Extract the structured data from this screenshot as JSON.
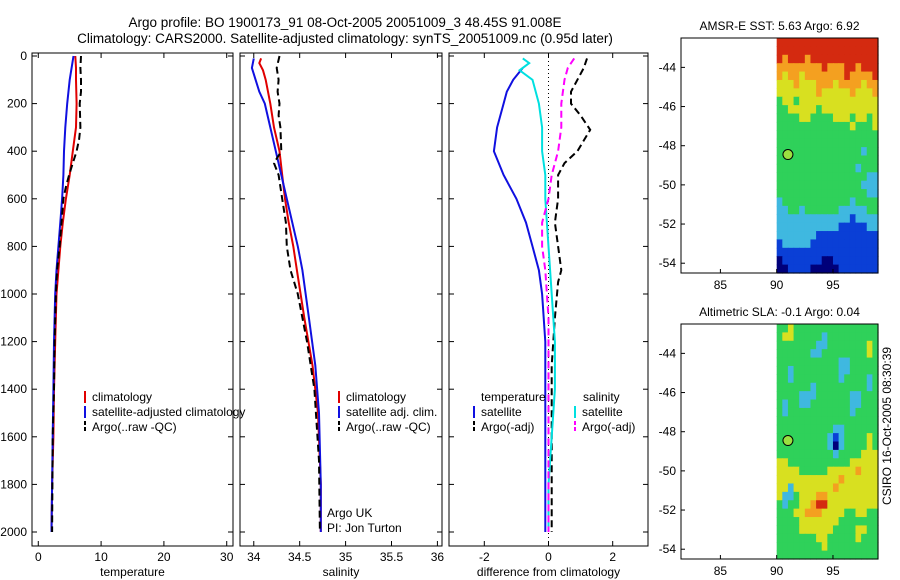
{
  "figure": {
    "title_line1": "Argo profile: BO 1900173_91 08-Oct-2005 20051009_3 48.45S 91.008E",
    "title_line2": "Climatology: CARS2000. Satellite-adjusted climatology: synTS_20051009.nc (0.95d later)",
    "side_label": "CSIRO 16-Oct-2005 08:30:39",
    "argo_credit_1": "Argo UK",
    "argo_credit_2": "PI: Jon Turton"
  },
  "colors": {
    "climatology": "#e00000",
    "satellite": "#1010e0",
    "argo": "#000000",
    "salinity_satellite": "#00e0e0",
    "salinity_argo": "#ff00ff"
  },
  "chart_data": [
    {
      "type": "line",
      "id": "temperature",
      "xlabel": "temperature",
      "ylabel": "",
      "xlim": [
        -1,
        31
      ],
      "ylim": [
        2050,
        0
      ],
      "xticks": [
        0,
        10,
        20,
        30
      ],
      "yticks": [
        0,
        200,
        400,
        600,
        800,
        1000,
        1200,
        1400,
        1600,
        1800,
        2000
      ],
      "legend": [
        "climatology",
        "satellite-adjusted climatology",
        "Argo(..raw -QC)"
      ],
      "series": [
        {
          "name": "climatology",
          "style": "solid",
          "color": "#e00000",
          "x": [
            5.9,
            6.0,
            6.0,
            6.1,
            6.0,
            5.5,
            5.0,
            4.4,
            3.9,
            3.5,
            3.2,
            2.9,
            2.7,
            2.5,
            2.4,
            2.2,
            2.1
          ],
          "y": [
            0,
            50,
            100,
            200,
            300,
            400,
            500,
            600,
            700,
            800,
            900,
            1000,
            1200,
            1400,
            1600,
            1800,
            2000
          ]
        },
        {
          "name": "satellite-adjusted climatology",
          "style": "solid",
          "color": "#1010e0",
          "x": [
            5.6,
            5.0,
            4.6,
            4.3,
            4.1,
            4.0,
            3.8,
            3.5,
            3.2,
            2.9,
            2.7,
            2.5,
            2.4,
            2.3,
            2.1
          ],
          "y": [
            0,
            100,
            200,
            300,
            400,
            500,
            600,
            700,
            800,
            900,
            1000,
            1200,
            1400,
            1600,
            2000
          ]
        },
        {
          "name": "Argo(..raw -QC)",
          "style": "dashed",
          "color": "#000000",
          "x": [
            6.8,
            6.7,
            6.8,
            6.8,
            6.6,
            6.7,
            6.5,
            6.1,
            5.5,
            4.9,
            4.4,
            4.0,
            3.7,
            3.4,
            3.0,
            2.8,
            2.6,
            2.5,
            2.3,
            2.2
          ],
          "y": [
            0,
            50,
            100,
            150,
            200,
            300,
            350,
            400,
            450,
            500,
            550,
            600,
            700,
            800,
            900,
            1000,
            1200,
            1400,
            1600,
            2000
          ]
        }
      ]
    },
    {
      "type": "line",
      "id": "salinity",
      "xlabel": "salinity",
      "ylabel": "",
      "xlim": [
        33.85,
        36.05
      ],
      "ylim": [
        2050,
        0
      ],
      "xticks": [
        34,
        34.5,
        35,
        35.5,
        36
      ],
      "legend": [
        "climatology",
        "satellite adj. clim.",
        "Argo(..raw -QC)"
      ],
      "series": [
        {
          "name": "climatology",
          "style": "solid",
          "color": "#e00000",
          "x": [
            34.08,
            34.06,
            34.1,
            34.13,
            34.18,
            34.22,
            34.28,
            34.31,
            34.34,
            34.38,
            34.43,
            34.47,
            34.55,
            34.64,
            34.7,
            34.73,
            34.73
          ],
          "y": [
            10,
            30,
            60,
            100,
            200,
            300,
            400,
            500,
            600,
            700,
            800,
            900,
            1100,
            1300,
            1500,
            1800,
            2000
          ]
        },
        {
          "name": "satellite adj. clim.",
          "style": "solid",
          "color": "#1010e0",
          "x": [
            34.0,
            33.98,
            34.02,
            34.06,
            34.12,
            34.18,
            34.24,
            34.3,
            34.36,
            34.42,
            34.48,
            34.53,
            34.6,
            34.67,
            34.71,
            34.73,
            34.73
          ],
          "y": [
            10,
            50,
            100,
            150,
            200,
            300,
            400,
            500,
            600,
            700,
            800,
            900,
            1100,
            1300,
            1500,
            1800,
            2000
          ]
        },
        {
          "name": "Argo(..raw -QC)",
          "style": "dashed",
          "color": "#000000",
          "x": [
            34.28,
            34.25,
            34.27,
            34.26,
            34.28,
            34.27,
            34.29,
            34.3,
            34.22,
            34.27,
            34.31,
            34.35,
            34.36,
            34.4,
            34.48,
            34.58,
            34.66,
            34.71,
            34.72
          ],
          "y": [
            0,
            50,
            100,
            150,
            200,
            250,
            300,
            400,
            450,
            500,
            600,
            700,
            800,
            900,
            1000,
            1200,
            1400,
            1700,
            2000
          ]
        }
      ]
    },
    {
      "type": "line",
      "id": "difference",
      "xlabel": "difference from climatology",
      "ylabel": "",
      "xlim": [
        -3.1,
        3.1
      ],
      "ylim": [
        2050,
        0
      ],
      "xticks": [
        -2,
        0,
        2
      ],
      "legend_left_heading": "temperature",
      "legend_right_heading": "salinity",
      "legend": [
        "satellite",
        "Argo(-adj)",
        "satellite",
        "Argo(-adj)"
      ],
      "series": [
        {
          "name": "temperature satellite",
          "style": "solid",
          "color": "#1010e0",
          "x": [
            -0.8,
            -1.1,
            -1.3,
            -1.4,
            -1.6,
            -1.7,
            -1.4,
            -1.0,
            -0.7,
            -0.5,
            -0.3,
            -0.2,
            -0.1,
            -0.1,
            -0.1,
            -0.1
          ],
          "y": [
            50,
            100,
            150,
            200,
            300,
            400,
            500,
            600,
            700,
            800,
            900,
            1000,
            1200,
            1500,
            1800,
            2000
          ]
        },
        {
          "name": "temperature Argo(-adj)",
          "style": "dashed",
          "color": "#000000",
          "x": [
            1.2,
            1.1,
            0.9,
            0.7,
            0.7,
            1.0,
            1.3,
            0.9,
            0.5,
            0.3,
            0.3,
            0.2,
            0.3,
            0.4,
            0.3,
            0.2,
            0.1,
            0.1,
            0.1
          ],
          "y": [
            10,
            50,
            100,
            150,
            200,
            250,
            310,
            400,
            450,
            500,
            600,
            700,
            800,
            900,
            950,
            1100,
            1300,
            1600,
            2000
          ]
        },
        {
          "name": "salinity satellite",
          "style": "solid",
          "color": "#00e0e0",
          "x": [
            -0.8,
            -0.6,
            -0.9,
            -0.5,
            -0.3,
            -0.2,
            -0.2,
            -0.1,
            -0.1,
            0.0,
            0.1,
            0.2,
            0.2,
            0.1,
            0.0,
            0.0
          ],
          "y": [
            10,
            30,
            60,
            100,
            200,
            300,
            400,
            500,
            600,
            800,
            1000,
            1200,
            1400,
            1600,
            1800,
            2000
          ]
        },
        {
          "name": "salinity Argo(-adj)",
          "style": "dashed",
          "color": "#ff00ff",
          "x": [
            0.8,
            0.6,
            0.5,
            0.4,
            0.4,
            0.3,
            0.1,
            0.0,
            -0.2,
            -0.2,
            -0.1,
            0.0,
            0.0,
            0.0,
            0.0
          ],
          "y": [
            10,
            50,
            100,
            200,
            300,
            400,
            500,
            600,
            700,
            800,
            900,
            1100,
            1300,
            1600,
            2000
          ]
        }
      ]
    },
    {
      "type": "heatmap",
      "id": "sst_map",
      "title": "AMSR-E SST: 5.63 Argo: 6.92",
      "xlim": [
        81.5,
        99
      ],
      "ylim": [
        -54.5,
        -42.5
      ],
      "xticks": [
        85,
        90,
        95
      ],
      "yticks": [
        -44,
        -46,
        -48,
        -50,
        -52,
        -54
      ],
      "data_xrange": [
        90,
        99
      ],
      "marker": {
        "lon": 91.0,
        "lat": -48.45
      },
      "rows_north_to_south": [
        "RRRRRRRRRRRRRRRRRR",
        "RRRRRRRRRRRRRRRRRR",
        "RORRRORRRRRRRRRRRR",
        "OOOOOOOOROOORRORRR",
        "OYOOYOOOOOOOROOOOR",
        "YYYOYYYOOOYOOOOYOO",
        "YYYYYYYOYYYYYOYYYO",
        "GYYGYYYYYYYYYYYYYY",
        "GGYYYYYGYYYYYYYYYY",
        "GGGGYYGGGGYYYGYYGY",
        "GGGGGGGGGGGGGYGGGY",
        "GGGGGGGGGGGGGGGGGG",
        "GGGGGGGGGGGGGGGGGG",
        "GGGGGGGGGGGGGGGCGG",
        "GGGGGGGGGGGGGGGGGG",
        "GGGGGGGGGGGGGGCGGG",
        "GGGGGGGGGGGGGGGGCC",
        "GGGGGGGGGGGGGGGCCC",
        "GGGGGGGGGGGGGGGGCC",
        "CGGGGGGGGGGGGCGGGG",
        "CCGGCGGGGGGCCCCCGG",
        "CCCCCCCCCCCCCBCCCC",
        "CCCCCCCCCCCBBBBBCC",
        "CCCCCCCBBBBBBBBBBB",
        "BCCCCCBBBBBBBBBBBB",
        "BBBBBBBBBBBBBBBBBB",
        "NBBBBBBBNNBBBBBBBB",
        "NNBBBBNNNNNBBBBBBB"
      ]
    },
    {
      "type": "heatmap",
      "id": "sla_map",
      "title": "Altimetric SLA: -0.1 Argo: 0.04",
      "xlim": [
        81.5,
        99
      ],
      "ylim": [
        -54.5,
        -42.5
      ],
      "xticks": [
        85,
        90,
        95
      ],
      "yticks": [
        -44,
        -46,
        -48,
        -50,
        -52,
        -54
      ],
      "data_xrange": [
        90,
        99
      ],
      "marker": {
        "lon": 91.0,
        "lat": -48.45
      },
      "rows_north_to_south": [
        "GGYGGGGGGGGGGGGGGG",
        "GYYGGGGGCGGGGGGGGG",
        "GGGGGGGCCGGGGGGGYG",
        "GGGGGGCCGGGGGGGGYG",
        "GGGGGGGGGGGCCGGGGG",
        "GGCGGGGGGGGCCGGGGG",
        "GGCGGGGGGGGCGGGGCG",
        "GGGGGGCGGGGGGGGGCG",
        "GGGGCCCGGGGGGCCGGG",
        "GCGGCCGGGGGGGCCGGG",
        "GCGGGGGGGGGGGCGGGG",
        "GGGGGGGGGGGGGGGGGG",
        "GGGGGGGGGGCCGGGGGG",
        "GGGGGGGGGCBCGGGGYG",
        "GGGGGGGGGCNCGGGGYG",
        "GGGGGGGGGGCGGGGYYY",
        "YYGGGGGGGGGGGYYYYY",
        "YYYYGGGGGYYYYYOYYY",
        "YYYYYYYYYYYOYYYYYY",
        "YYCYYYYYYYOYYYYYYY",
        "YCCGYYYOOYYYYYYYYY",
        "GCGGYYORRYYYYYYYYY",
        "GGGYYOOOYYYYGGYYGG",
        "GGGGYYYYYYYGGGGGGG",
        "GGGGYYYYYYGGGGYYGG",
        "GGGGGGGYYGGGGGYGGG",
        "GGGGGGGGYGGGGGGGGG",
        "GGGGGGGGGGGGGGGGGG"
      ]
    }
  ],
  "palette": {
    "N": "#00007a",
    "B": "#0a3fd6",
    "C": "#3fb8e0",
    "G": "#2fd15a",
    "Y": "#d8e020",
    "O": "#f4a020",
    "R": "#d42a10"
  }
}
